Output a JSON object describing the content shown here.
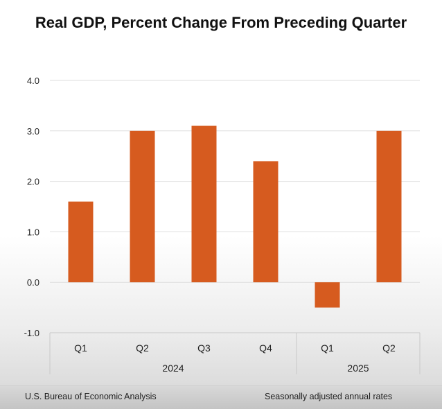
{
  "chart_data": {
    "type": "bar",
    "title": "Real GDP, Percent Change From Preceding Quarter",
    "categories": [
      "Q1",
      "Q2",
      "Q3",
      "Q4",
      "Q1",
      "Q2"
    ],
    "groups": [
      {
        "label": "2024",
        "count": 4
      },
      {
        "label": "2025",
        "count": 2
      }
    ],
    "values": [
      1.6,
      3.0,
      3.1,
      2.4,
      -0.5,
      3.0
    ],
    "ylim": [
      -1.0,
      4.0
    ],
    "yticks": [
      "-1.0",
      "0.0",
      "1.0",
      "2.0",
      "3.0",
      "4.0"
    ],
    "xlabel": "",
    "ylabel": "",
    "grid": true,
    "bar_color": "#d65b1f"
  },
  "footer": {
    "source": "U.S. Bureau of Economic Analysis",
    "note": "Seasonally adjusted annual rates"
  }
}
